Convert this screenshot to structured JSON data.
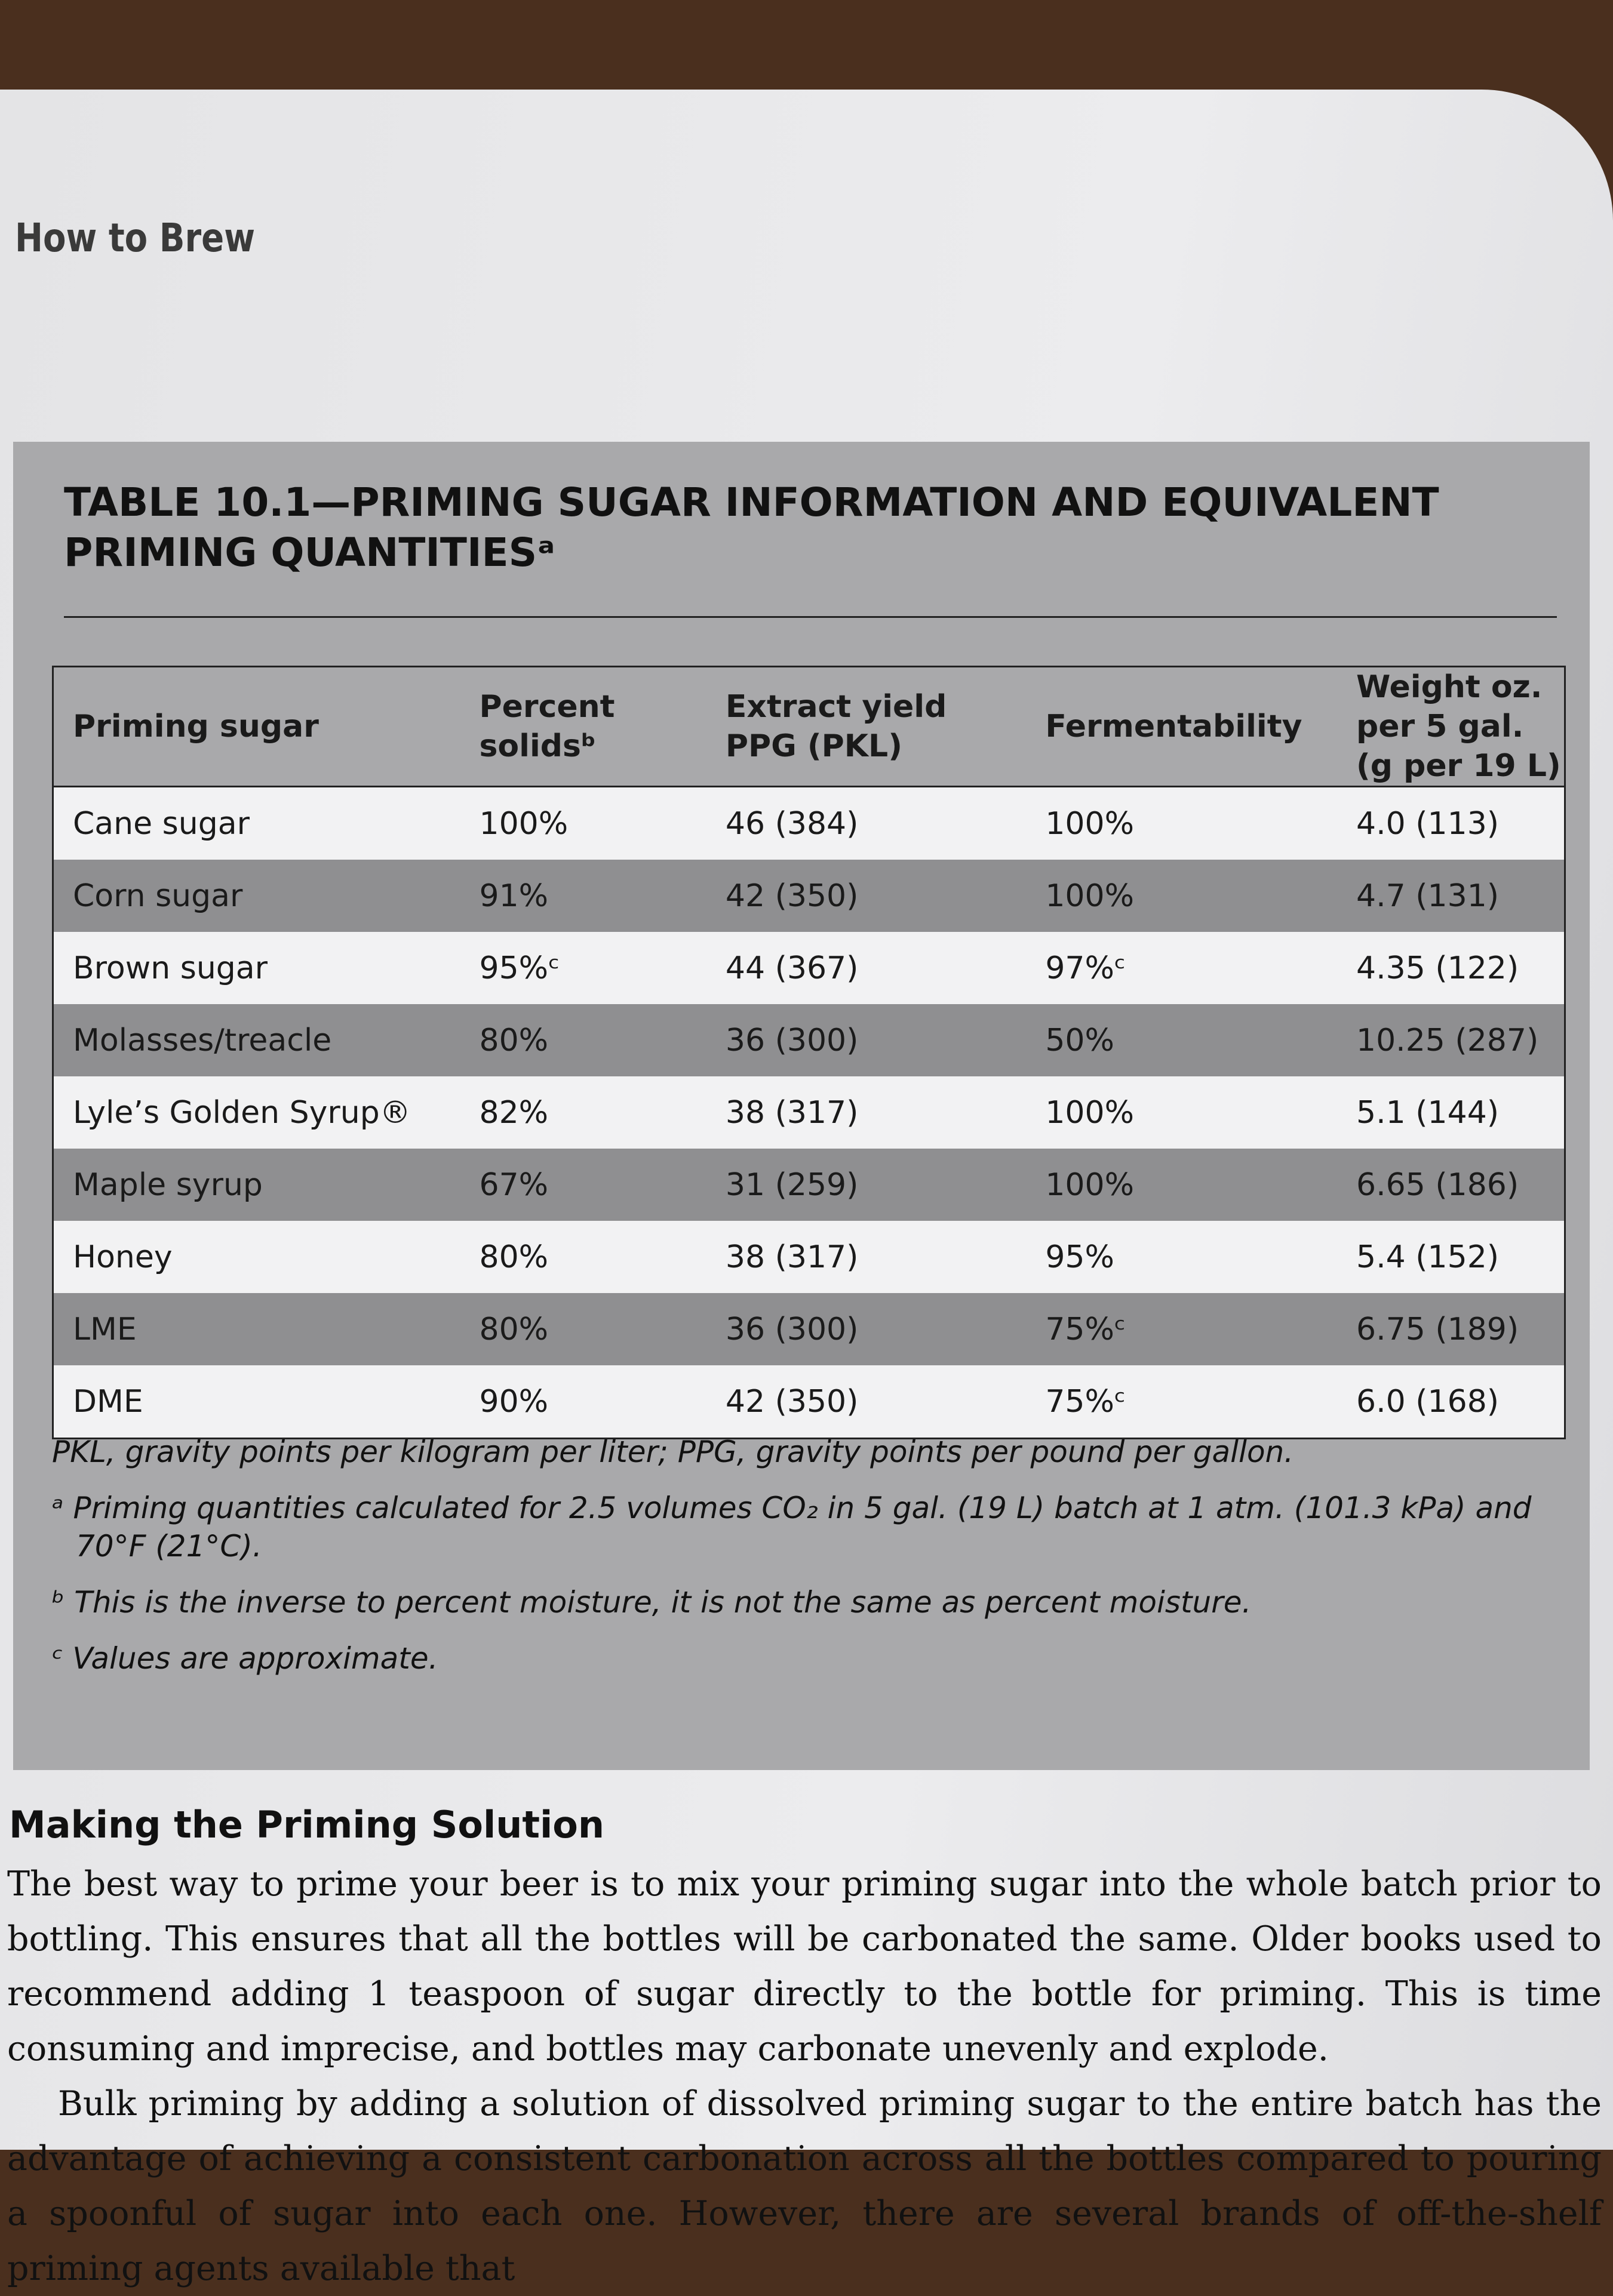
{
  "header": {
    "running_head": "How to Brew"
  },
  "table": {
    "title": "TABLE 10.1—PRIMING SUGAR INFORMATION AND EQUIVALENT PRIMING QUANTITIESᵃ",
    "columns": [
      "Priming sugar",
      "Percent solidsᵇ",
      "Extract yield PPG (PKL)",
      "Fermentability",
      "Weight oz. per 5 gal. (g per 19 L)"
    ],
    "rows": [
      [
        "Cane sugar",
        "100%",
        "46 (384)",
        "100%",
        "4.0 (113)"
      ],
      [
        "Corn sugar",
        "91%",
        "42 (350)",
        "100%",
        "4.7 (131)"
      ],
      [
        "Brown sugar",
        "95%ᶜ",
        "44 (367)",
        "97%ᶜ",
        "4.35 (122)"
      ],
      [
        "Molasses/treacle",
        "80%",
        "36 (300)",
        "50%",
        "10.25 (287)"
      ],
      [
        "Lyle’s Golden Syrup®",
        "82%",
        "38 (317)",
        "100%",
        "5.1 (144)"
      ],
      [
        "Maple syrup",
        "67%",
        "31 (259)",
        "100%",
        "6.65 (186)"
      ],
      [
        "Honey",
        "80%",
        "38 (317)",
        "95%",
        "5.4 (152)"
      ],
      [
        "LME",
        "80%",
        "36 (300)",
        "75%ᶜ",
        "6.75 (189)"
      ],
      [
        "DME",
        "90%",
        "42 (350)",
        "75%ᶜ",
        "6.0 (168)"
      ]
    ],
    "notes": [
      "PKL, gravity points per kilogram per liter; PPG, gravity points per pound per gallon.",
      "ᵃ Priming quantities calculated for 2.5 volumes CO₂ in 5 gal. (19 L) batch at 1 atm. (101.3 kPa) and 70°F (21°C).",
      "ᵇ This is the inverse to percent moisture, it is not the same as percent moisture.",
      "ᶜ Values are approximate."
    ]
  },
  "section": {
    "heading": "Making the Priming Solution",
    "paragraphs": [
      "The best way to prime your beer is to mix your priming sugar into the whole batch prior to bottling. This ensures that all the bottles will be carbonated the same. Older books used to recommend adding 1 teaspoon of sugar directly to the bottle for priming. This is time consuming and imprecise, and bottles may carbonate unevenly and explode.",
      "Bulk priming by adding a solution of dissolved priming sugar to the entire batch has the advantage of achieving a consistent carbonation across all the bottles compared to pouring a spoonful of sugar into each one. However, there are several brands of off-the-shelf priming agents available that"
    ]
  }
}
